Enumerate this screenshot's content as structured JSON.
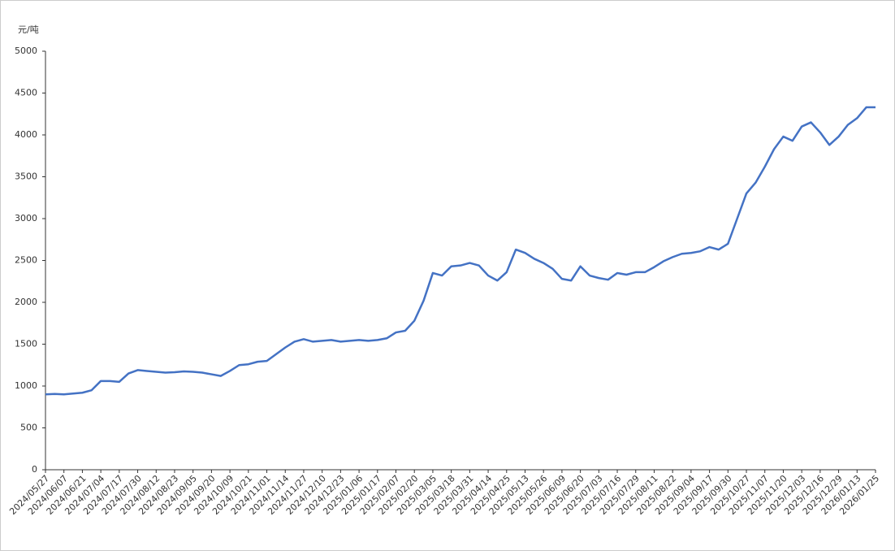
{
  "chart_data": {
    "type": "line",
    "y_label": "元/吨",
    "color": "#4472c4",
    "categories": [
      "2024/05/27",
      null,
      "2024/06/07",
      null,
      "2024/06/21",
      null,
      "2024/07/04",
      null,
      "2024/07/17",
      null,
      "2024/07/30",
      null,
      "2024/08/12",
      null,
      "2024/08/23",
      null,
      "2024/09/05",
      null,
      "2024/09/20",
      null,
      "2024/10/09",
      null,
      "2024/10/21",
      null,
      "2024/11/01",
      null,
      "2024/11/14",
      null,
      "2024/11/27",
      null,
      "2024/12/10",
      null,
      "2024/12/23",
      null,
      "2025/01/06",
      null,
      "2025/01/17",
      null,
      "2025/02/07",
      null,
      "2025/02/20",
      null,
      "2025/03/05",
      null,
      "2025/03/18",
      null,
      "2025/03/31",
      null,
      "2025/04/14",
      null,
      "2025/04/25",
      null,
      "2025/05/13",
      null,
      "2025/05/26",
      null,
      "2025/06/09",
      null,
      "2025/06/20",
      null,
      "2025/07/03",
      null,
      "2025/07/16",
      null,
      "2025/07/29",
      null,
      "2025/08/11",
      null,
      "2025/08/22",
      null,
      "2025/09/04",
      null,
      "2025/09/17",
      null,
      "2025/09/30",
      null,
      "2025/10/27",
      null,
      "2025/11/07",
      null,
      "2025/11/20",
      null,
      "2025/12/03",
      null,
      "2025/12/16",
      null,
      "2025/12/29",
      null,
      "2026/01/13",
      null,
      "2026/01/25"
    ],
    "values": [
      900,
      905,
      900,
      910,
      920,
      950,
      1060,
      1060,
      1050,
      1150,
      1190,
      1180,
      1170,
      1160,
      1165,
      1175,
      1170,
      1160,
      1140,
      1120,
      1180,
      1250,
      1260,
      1290,
      1300,
      1380,
      1460,
      1530,
      1560,
      1530,
      1540,
      1550,
      1530,
      1540,
      1550,
      1540,
      1550,
      1570,
      1640,
      1660,
      1780,
      2020,
      2350,
      2320,
      2430,
      2440,
      2470,
      2440,
      2320,
      2260,
      2360,
      2630,
      2590,
      2520,
      2470,
      2400,
      2280,
      2260,
      2430,
      2320,
      2290,
      2270,
      2350,
      2330,
      2360,
      2360,
      2420,
      2490,
      2540,
      2580,
      2590,
      2610,
      2660,
      2630,
      2700,
      3000,
      3300,
      3430,
      3620,
      3830,
      3980,
      3930,
      4100,
      4150,
      4030,
      3880,
      3980,
      4120,
      4200,
      4330,
      4330
    ],
    "ylim": [
      0,
      5000
    ],
    "yticks": [
      0,
      500,
      1000,
      1500,
      2000,
      2500,
      3000,
      3500,
      4000,
      4500,
      5000
    ],
    "grid": false
  }
}
